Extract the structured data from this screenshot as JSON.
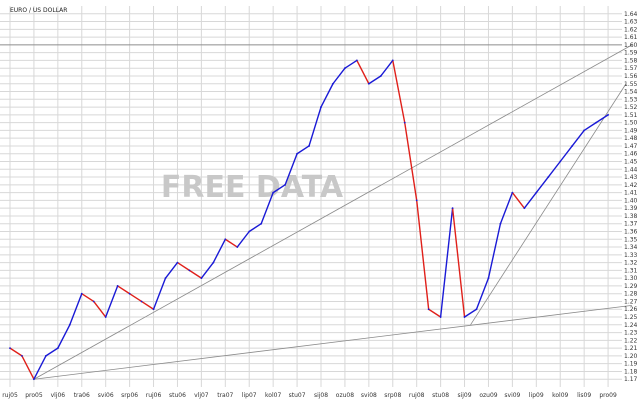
{
  "chart_data": {
    "type": "line",
    "title": "EURO / US DOLLAR",
    "watermark": "FREE DATA",
    "ylim": [
      1.16,
      1.65
    ],
    "y_ticks": [
      1.17,
      1.18,
      1.19,
      1.2,
      1.21,
      1.22,
      1.23,
      1.24,
      1.25,
      1.26,
      1.27,
      1.28,
      1.29,
      1.3,
      1.31,
      1.32,
      1.33,
      1.34,
      1.35,
      1.36,
      1.37,
      1.38,
      1.39,
      1.4,
      1.41,
      1.42,
      1.43,
      1.44,
      1.45,
      1.46,
      1.47,
      1.48,
      1.49,
      1.5,
      1.51,
      1.52,
      1.53,
      1.54,
      1.55,
      1.56,
      1.57,
      1.58,
      1.59,
      1.6,
      1.61,
      1.62,
      1.63,
      1.64
    ],
    "y_tick_labels": [
      "1.17",
      "1.18",
      "1.19",
      "1.20",
      "1.21",
      "1.22",
      "1.23",
      "1.24",
      "1.25",
      "1.26",
      "1.27",
      "1.28",
      "1.29",
      "1.30",
      "1.31",
      "1.32",
      "1.33",
      "1.34",
      "1.35",
      "1.36",
      "1.37",
      "1.38",
      "1.39",
      "1.40",
      "1.41",
      "1.42",
      "1.43",
      "1.44",
      "1.45",
      "1.46",
      "1.47",
      "1.48",
      "1.49",
      "1.50",
      "1.51",
      "1.52",
      "1.53",
      "1.54",
      "1.55",
      "1.56",
      "1.57",
      "1.58",
      "1.59",
      "1.60",
      "1.61",
      "1.62",
      "1.63",
      "1.64"
    ],
    "x_tick_labels": [
      "ruj05",
      "pro05",
      "vlj06",
      "tra06",
      "svi06",
      "srp06",
      "ruj06",
      "stu06",
      "vlj07",
      "tra07",
      "lip07",
      "kol07",
      "stu07",
      "sij08",
      "ozu08",
      "svi08",
      "srp08",
      "ruj08",
      "stu08",
      "sij09",
      "ozu09",
      "svi09",
      "lip09",
      "kol09",
      "lis09",
      "pro09"
    ],
    "x_tick_index": [
      0,
      2,
      4,
      6,
      8,
      10,
      12,
      14,
      16,
      18,
      20,
      22,
      24,
      26,
      28,
      30,
      32,
      34,
      36,
      38,
      40,
      42,
      44,
      46,
      48,
      50
    ],
    "series": [
      {
        "x": [
          0,
          1,
          2,
          3,
          4,
          5,
          6,
          7,
          8,
          9,
          10,
          11,
          12,
          13,
          14,
          15,
          16,
          17,
          18,
          19,
          20,
          21,
          22,
          23,
          24,
          25,
          26,
          27,
          28,
          29,
          30,
          31,
          32,
          33,
          34,
          35,
          36,
          37,
          38,
          39,
          40,
          41,
          42,
          43,
          44,
          45,
          46,
          47,
          48,
          49,
          50
        ],
        "values": [
          1.21,
          1.2,
          1.17,
          1.2,
          1.21,
          1.24,
          1.28,
          1.27,
          1.25,
          1.29,
          1.28,
          1.27,
          1.26,
          1.3,
          1.32,
          1.31,
          1.3,
          1.32,
          1.35,
          1.34,
          1.36,
          1.37,
          1.41,
          1.42,
          1.46,
          1.47,
          1.52,
          1.55,
          1.57,
          1.58,
          1.55,
          1.56,
          1.58,
          1.5,
          1.4,
          1.26,
          1.25,
          1.39,
          1.25,
          1.26,
          1.3,
          1.37,
          1.41,
          1.39,
          1.41,
          1.43,
          1.45,
          1.47,
          1.49,
          1.5,
          1.51
        ]
      }
    ],
    "horizontal_lines": [
      1.6
    ],
    "trendlines": [
      {
        "from": [
          2,
          1.17
        ],
        "to": [
          52,
          1.6
        ]
      },
      {
        "from": [
          2,
          1.17
        ],
        "to": [
          52,
          1.265
        ]
      },
      {
        "from": [
          38.5,
          1.24
        ],
        "to": [
          51.5,
          1.55
        ]
      }
    ]
  }
}
